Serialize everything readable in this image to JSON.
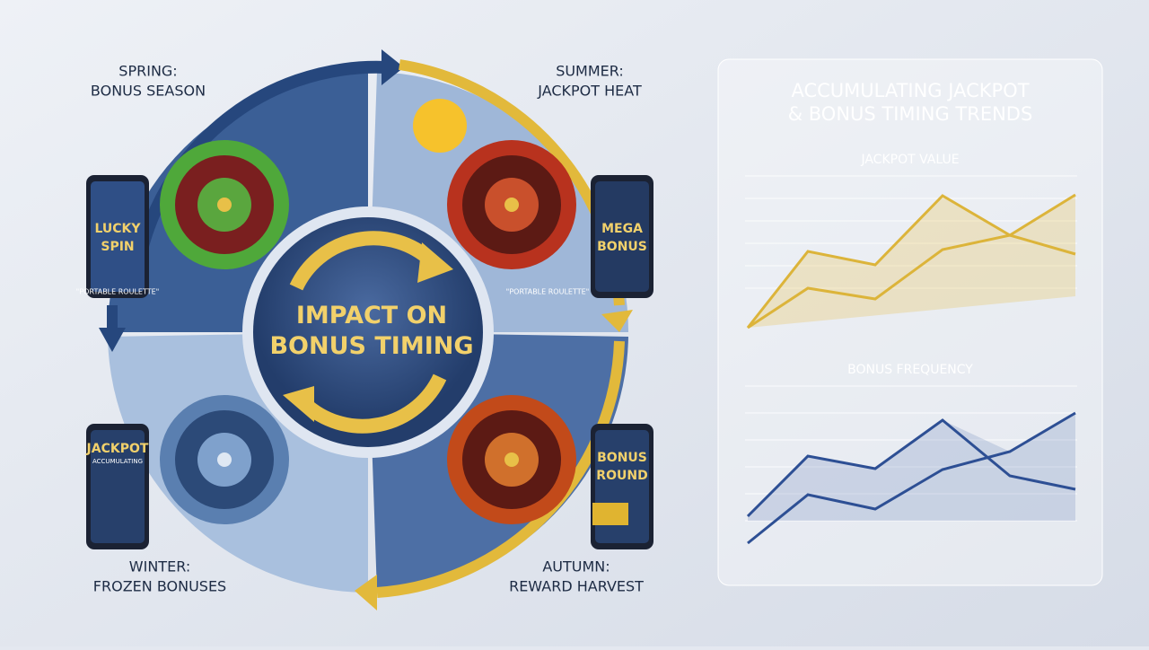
{
  "cycle": {
    "center": {
      "title": "IMPACT ON BONUS TIMING"
    },
    "seasons": [
      {
        "label": "SPRING:",
        "sublabel": "BONUS SEASON",
        "phone": "LUCKY SPIN",
        "caption": "\"PORTABLE ROULETTE\""
      },
      {
        "label": "SUMMER:",
        "sublabel": "JACKPOT HEAT",
        "phone": "MEGA BONUS",
        "caption": "\"PORTABLE ROULETTE\""
      },
      {
        "label": "WINTER:",
        "sublabel": "FROZEN BONUSES",
        "phone": "JACKPOT",
        "phone_sub": "ACCUMULATING"
      },
      {
        "label": "AUTUMN:",
        "sublabel": "REWARD HARVEST",
        "phone": "BONUS ROUND"
      }
    ]
  },
  "panel": {
    "title": "ACCUMULATING JACKPOT & BONUS TIMING TRENDS",
    "charts": [
      {
        "title": "JACKPOT VALUE"
      },
      {
        "title": "BONUS FREQUENCY"
      }
    ]
  }
}
